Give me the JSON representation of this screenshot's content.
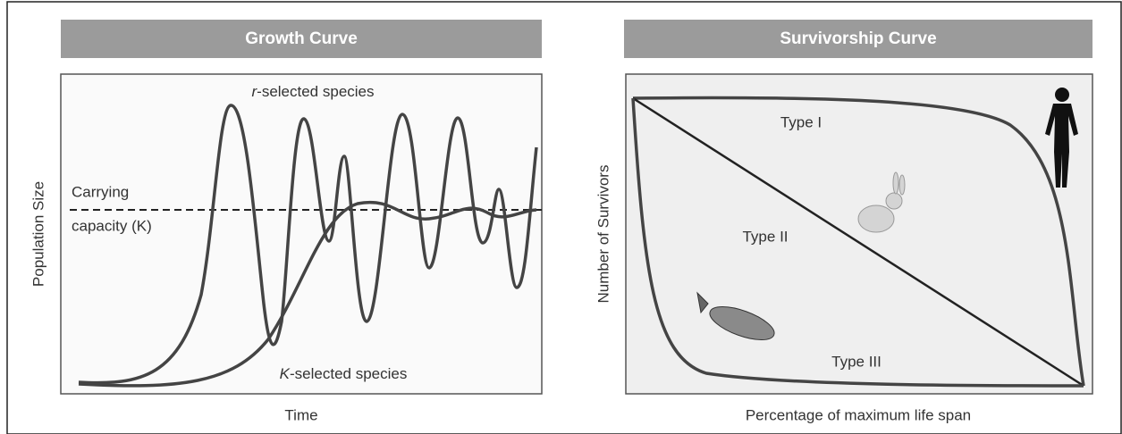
{
  "growth_panel": {
    "title": "Growth Curve",
    "y_label": "Population Size",
    "x_label": "Time",
    "r_label": {
      "italic": "r",
      "rest": "-selected species"
    },
    "k_label": {
      "italic": "K",
      "rest": "-selected species"
    },
    "capacity_label": [
      "Carrying",
      "capacity (K)"
    ]
  },
  "survivorship_panel": {
    "title": "Survivorship Curve",
    "y_label": "Number of Survivors",
    "x_label": "Percentage of maximum life span",
    "types": [
      "Type I",
      "Type II",
      "Type III"
    ]
  }
}
